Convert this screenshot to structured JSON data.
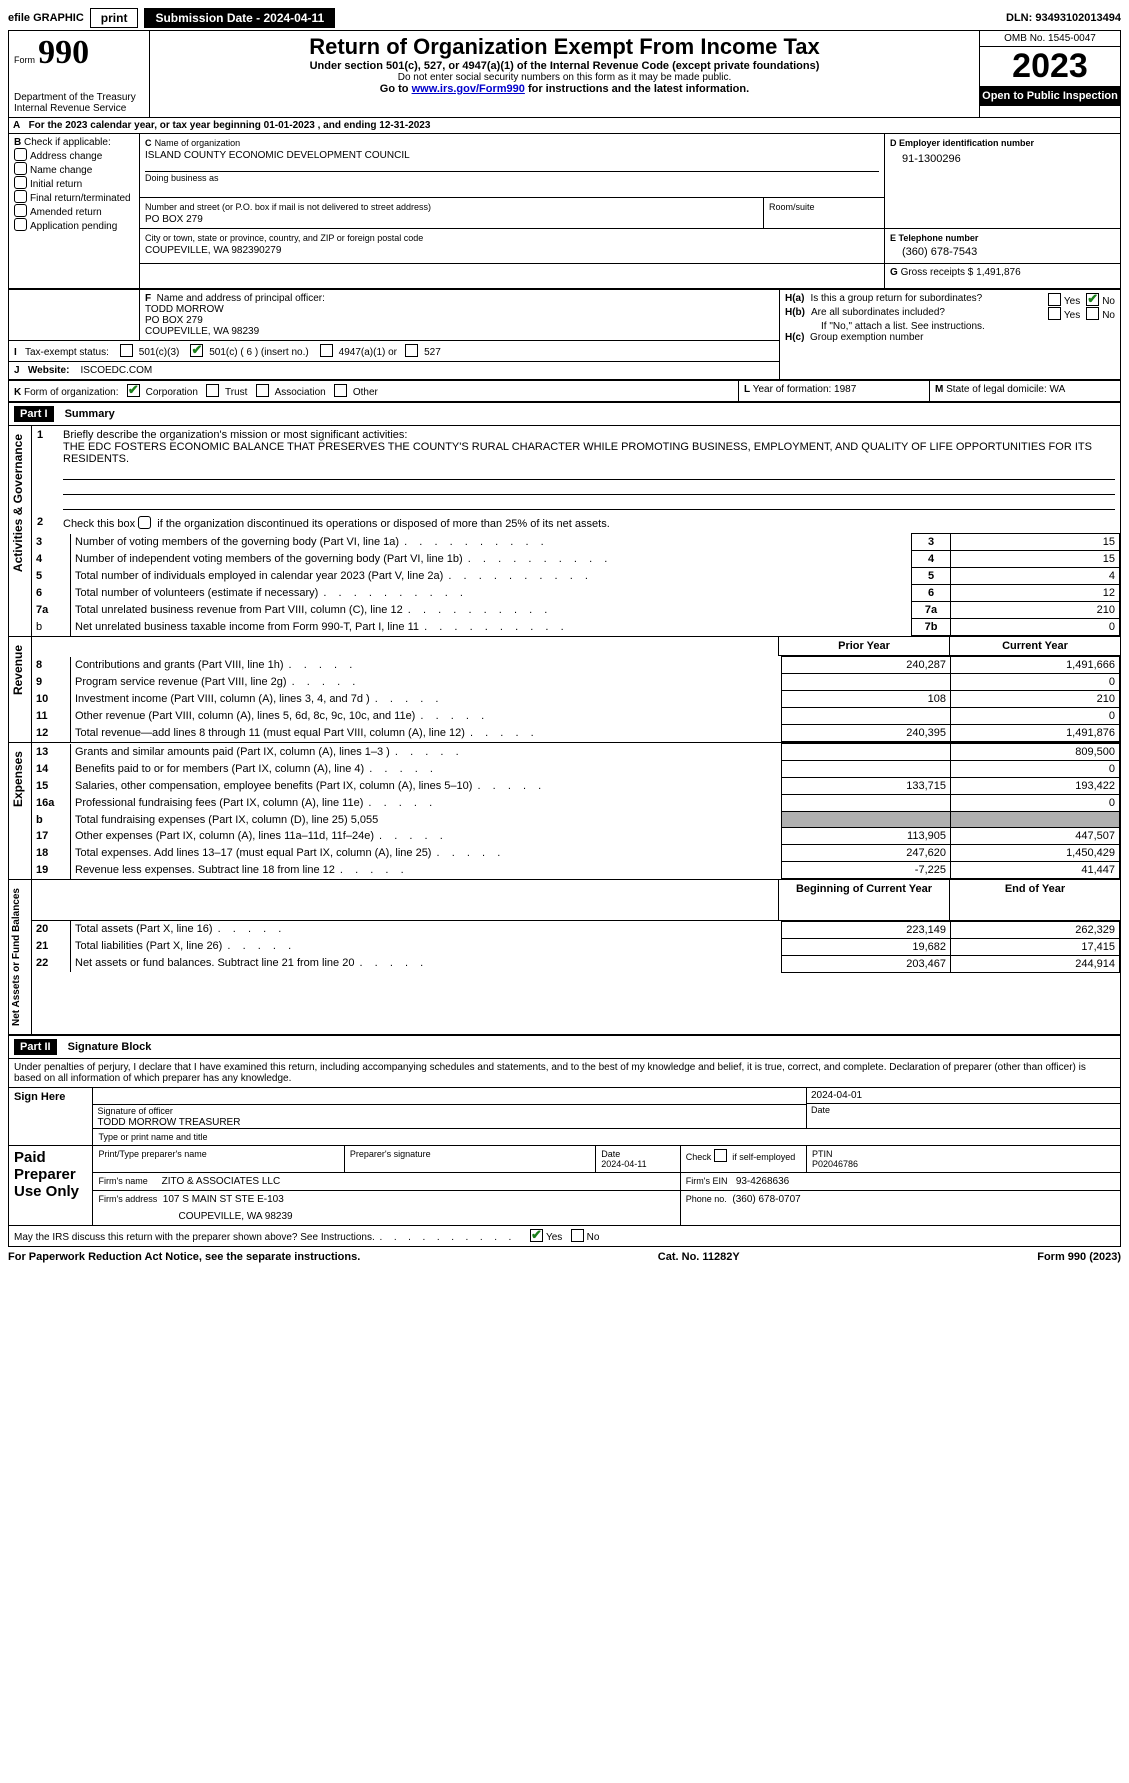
{
  "topbar": {
    "efile_label": "efile GRAPHIC",
    "print_btn": "print",
    "submission_label": "Submission Date - 2024-04-11",
    "dln": "DLN: 93493102013494"
  },
  "header": {
    "form_word": "Form",
    "form_num": "990",
    "dept": "Department of the Treasury",
    "service": "Internal Revenue Service",
    "title": "Return of Organization Exempt From Income Tax",
    "sub1": "Under section 501(c), 527, or 4947(a)(1) of the Internal Revenue Code (except private foundations)",
    "sub2": "Do not enter social security numbers on this form as it may be made public.",
    "sub3_pre": "Go to ",
    "sub3_link": "www.irs.gov/Form990",
    "sub3_post": " for instructions and the latest information.",
    "omb": "OMB No. 1545-0047",
    "year": "2023",
    "inspect": "Open to Public Inspection"
  },
  "lineA": {
    "prefix": "A",
    "text": "For the 2023 calendar year, or tax year beginning ",
    "begin": "01-01-2023",
    "middle": " , and ending ",
    "end": "12-31-2023"
  },
  "boxB": {
    "label": "B",
    "check_if": "Check if applicable:",
    "items": [
      "Address change",
      "Name change",
      "Initial return",
      "Final return/terminated",
      "Amended return",
      "Application pending"
    ]
  },
  "boxC": {
    "c_label": "C",
    "name_label": "Name of organization",
    "name": "ISLAND COUNTY ECONOMIC DEVELOPMENT COUNCIL",
    "dba_label": "Doing business as",
    "street_label": "Number and street (or P.O. box if mail is not delivered to street address)",
    "street": "PO BOX 279",
    "room_label": "Room/suite",
    "city_label": "City or town, state or province, country, and ZIP or foreign postal code",
    "city": "COUPEVILLE, WA  982390279"
  },
  "boxD": {
    "label": "D Employer identification number",
    "ein": "91-1300296"
  },
  "boxE": {
    "label": "E Telephone number",
    "phone": "(360) 678-7543"
  },
  "boxG": {
    "label": "G",
    "text": "Gross receipts $",
    "amount": "1,491,876"
  },
  "boxF": {
    "label": "F",
    "text": "Name and address of principal officer:",
    "name": "TODD MORROW",
    "street": "PO BOX 279",
    "city": "COUPEVILLE, WA  98239"
  },
  "boxH": {
    "ha_label": "H(a)",
    "ha_text": "Is this a group return for subordinates?",
    "hb_label": "H(b)",
    "hb_text": "Are all subordinates included?",
    "hb_note": "If \"No,\" attach a list. See instructions.",
    "hc_label": "H(c)",
    "hc_text": "Group exemption number",
    "yes": "Yes",
    "no": "No"
  },
  "boxI": {
    "label": "I",
    "text": "Tax-exempt status:",
    "o1": "501(c)(3)",
    "o2": "501(c) ( 6 ) (insert no.)",
    "o3": "4947(a)(1) or",
    "o4": "527"
  },
  "boxJ": {
    "label": "J",
    "text": "Website:",
    "url": "ISCOEDC.COM"
  },
  "boxK": {
    "label": "K",
    "text": "Form of organization:",
    "o1": "Corporation",
    "o2": "Trust",
    "o3": "Association",
    "o4": "Other"
  },
  "boxL": {
    "label": "L",
    "text": "Year of formation: 1987"
  },
  "boxM": {
    "label": "M",
    "text": "State of legal domicile: WA"
  },
  "part1": {
    "hdr": "Part I",
    "title": "Summary",
    "sec_governance": "Activities & Governance",
    "sec_revenue": "Revenue",
    "sec_expenses": "Expenses",
    "sec_netassets": "Net Assets or Fund Balances",
    "line1_label": "1",
    "line1_text": "Briefly describe the organization's mission or most significant activities:",
    "line1_mission": "THE EDC FOSTERS ECONOMIC BALANCE THAT PRESERVES THE COUNTY'S RURAL CHARACTER WHILE PROMOTING BUSINESS, EMPLOYMENT, AND QUALITY OF LIFE OPPORTUNITIES FOR ITS RESIDENTS.",
    "line2_label": "2",
    "line2_text": "Check this box         if the organization discontinued its operations or disposed of more than 25% of its net assets.",
    "rows_gov": [
      {
        "n": "3",
        "t": "Number of voting members of the governing body (Part VI, line 1a)",
        "box": "3",
        "v": "15"
      },
      {
        "n": "4",
        "t": "Number of independent voting members of the governing body (Part VI, line 1b)",
        "box": "4",
        "v": "15"
      },
      {
        "n": "5",
        "t": "Total number of individuals employed in calendar year 2023 (Part V, line 2a)",
        "box": "5",
        "v": "4"
      },
      {
        "n": "6",
        "t": "Total number of volunteers (estimate if necessary)",
        "box": "6",
        "v": "12"
      },
      {
        "n": "7a",
        "t": "Total unrelated business revenue from Part VIII, column (C), line 12",
        "box": "7a",
        "v": "210"
      },
      {
        "n": "b",
        "t": "Net unrelated business taxable income from Form 990-T, Part I, line 11",
        "box": "7b",
        "v": "0",
        "noBoldNum": true
      }
    ],
    "hdr_prior": "Prior Year",
    "hdr_current": "Current Year",
    "rows_rev": [
      {
        "n": "8",
        "t": "Contributions and grants (Part VIII, line 1h)",
        "p": "240,287",
        "c": "1,491,666"
      },
      {
        "n": "9",
        "t": "Program service revenue (Part VIII, line 2g)",
        "p": "",
        "c": "0"
      },
      {
        "n": "10",
        "t": "Investment income (Part VIII, column (A), lines 3, 4, and 7d )",
        "p": "108",
        "c": "210"
      },
      {
        "n": "11",
        "t": "Other revenue (Part VIII, column (A), lines 5, 6d, 8c, 9c, 10c, and 11e)",
        "p": "",
        "c": "0"
      },
      {
        "n": "12",
        "t": "Total revenue—add lines 8 through 11 (must equal Part VIII, column (A), line 12)",
        "p": "240,395",
        "c": "1,491,876"
      }
    ],
    "rows_exp": [
      {
        "n": "13",
        "t": "Grants and similar amounts paid (Part IX, column (A), lines 1–3 )",
        "p": "",
        "c": "809,500"
      },
      {
        "n": "14",
        "t": "Benefits paid to or for members (Part IX, column (A), line 4)",
        "p": "",
        "c": "0"
      },
      {
        "n": "15",
        "t": "Salaries, other compensation, employee benefits (Part IX, column (A), lines 5–10)",
        "p": "133,715",
        "c": "193,422"
      },
      {
        "n": "16a",
        "t": "Professional fundraising fees (Part IX, column (A), line 11e)",
        "p": "",
        "c": "0"
      },
      {
        "n": "b",
        "t": "Total fundraising expenses (Part IX, column (D), line 25) 5,055",
        "grey": true
      },
      {
        "n": "17",
        "t": "Other expenses (Part IX, column (A), lines 11a–11d, 11f–24e)",
        "p": "113,905",
        "c": "447,507"
      },
      {
        "n": "18",
        "t": "Total expenses. Add lines 13–17 (must equal Part IX, column (A), line 25)",
        "p": "247,620",
        "c": "1,450,429"
      },
      {
        "n": "19",
        "t": "Revenue less expenses. Subtract line 18 from line 12",
        "p": "-7,225",
        "c": "41,447"
      }
    ],
    "hdr_begin": "Beginning of Current Year",
    "hdr_end": "End of Year",
    "rows_na": [
      {
        "n": "20",
        "t": "Total assets (Part X, line 16)",
        "p": "223,149",
        "c": "262,329"
      },
      {
        "n": "21",
        "t": "Total liabilities (Part X, line 26)",
        "p": "19,682",
        "c": "17,415"
      },
      {
        "n": "22",
        "t": "Net assets or fund balances. Subtract line 21 from line 20",
        "p": "203,467",
        "c": "244,914"
      }
    ]
  },
  "part2": {
    "hdr": "Part II",
    "title": "Signature Block",
    "declaration": "Under penalties of perjury, I declare that I have examined this return, including accompanying schedules and statements, and to the best of my knowledge and belief, it is true, correct, and complete. Declaration of preparer (other than officer) is based on all information of which preparer has any knowledge.",
    "sign_here": "Sign Here",
    "sig_officer_label": "Signature of officer",
    "date_label": "Date",
    "sig_date": "2024-04-01",
    "officer_name": "TODD MORROW  TREASURER",
    "type_label": "Type or print name and title",
    "paid": "Paid Preparer Use Only",
    "prep_name_label": "Print/Type preparer's name",
    "prep_sig_label": "Preparer's signature",
    "prep_date_label": "Date",
    "prep_date": "2024-04-11",
    "check_self": "Check        if self-employed",
    "ptin_label": "PTIN",
    "ptin": "P02046786",
    "firm_name_label": "Firm's name",
    "firm_name": "ZITO & ASSOCIATES LLC",
    "firm_ein_label": "Firm's EIN",
    "firm_ein": "93-4268636",
    "firm_addr_label": "Firm's address",
    "firm_addr1": "107 S MAIN ST STE E-103",
    "firm_addr2": "COUPEVILLE, WA  98239",
    "phone_label": "Phone no.",
    "phone": "(360) 678-0707",
    "discuss": "May the IRS discuss this return with the preparer shown above? See Instructions.",
    "yes": "Yes",
    "no": "No"
  },
  "footer": {
    "left": "For Paperwork Reduction Act Notice, see the separate instructions.",
    "mid": "Cat. No. 11282Y",
    "right": "Form 990 (2023)"
  }
}
